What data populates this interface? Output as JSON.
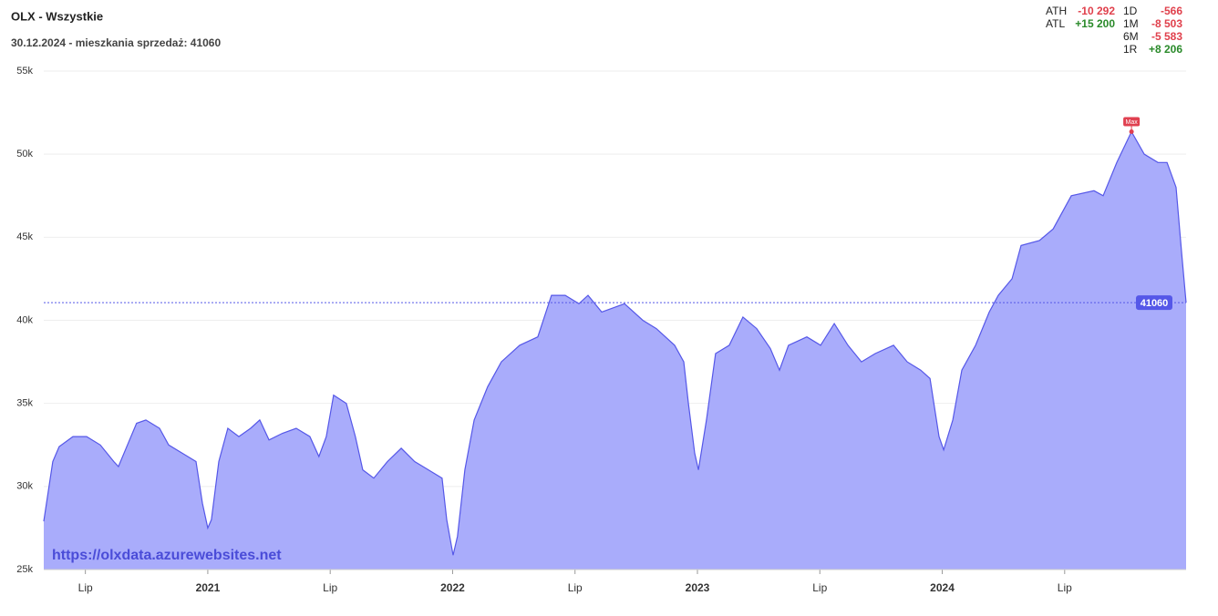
{
  "chart_data": {
    "type": "area",
    "title": "OLX - Wszystkie",
    "subtitle": "30.12.2024 - mieszkania sprzedaż: 41060",
    "watermark": "https://olxdata.azurewebsites.net",
    "x": [
      2020.33,
      2020.367,
      2020.393,
      2020.449,
      2020.505,
      2020.561,
      2020.616,
      2020.635,
      2020.672,
      2020.709,
      2020.747,
      2020.803,
      2020.84,
      2020.896,
      2020.952,
      2020.978,
      2021.0,
      2021.015,
      2021.045,
      2021.082,
      2021.127,
      2021.175,
      2021.212,
      2021.25,
      2021.305,
      2021.361,
      2021.417,
      2021.454,
      2021.484,
      2021.514,
      2021.566,
      2021.603,
      2021.633,
      2021.678,
      2021.734,
      2021.79,
      2021.845,
      2021.901,
      2021.957,
      2021.976,
      2022.002,
      2022.02,
      2022.05,
      2022.088,
      2022.143,
      2022.199,
      2022.274,
      2022.348,
      2022.404,
      2022.46,
      2022.516,
      2022.553,
      2022.609,
      2022.702,
      2022.777,
      2022.832,
      2022.907,
      2022.944,
      2022.963,
      2022.989,
      2023.004,
      2023.037,
      2023.074,
      2023.13,
      2023.186,
      2023.242,
      2023.298,
      2023.335,
      2023.372,
      2023.447,
      2023.503,
      2023.559,
      2023.615,
      2023.67,
      2023.726,
      2023.801,
      2023.857,
      2023.912,
      2023.95,
      2023.987,
      2024.006,
      2024.043,
      2024.08,
      2024.136,
      2024.192,
      2024.229,
      2024.285,
      2024.322,
      2024.397,
      2024.453,
      2024.527,
      2024.62,
      2024.657,
      2024.713,
      2024.773,
      2024.825,
      2024.881,
      2024.918,
      2024.955,
      2024.978,
      2024.996
    ],
    "series": [
      {
        "color": "#5557e8",
        "fill": "#a9acfb",
        "values": [
          27900,
          31500,
          32400,
          33000,
          33000,
          32500,
          31500,
          31200,
          32500,
          33800,
          34000,
          33500,
          32500,
          32000,
          31500,
          29000,
          27500,
          28000,
          31500,
          33500,
          33000,
          33500,
          34000,
          32800,
          33200,
          33500,
          33000,
          31800,
          33000,
          35500,
          35000,
          33000,
          31000,
          30500,
          31500,
          32300,
          31500,
          31000,
          30500,
          28000,
          25860,
          27000,
          31000,
          34000,
          36000,
          37500,
          38500,
          39000,
          41500,
          41500,
          41000,
          41500,
          40500,
          41000,
          40000,
          39500,
          38500,
          37500,
          35000,
          32000,
          31000,
          34000,
          38000,
          38500,
          40200,
          39500,
          38300,
          37000,
          38500,
          39000,
          38500,
          39800,
          38500,
          37500,
          38000,
          38500,
          37500,
          37000,
          36500,
          33000,
          32200,
          34000,
          37000,
          38500,
          40500,
          41500,
          42500,
          44500,
          44800,
          45500,
          47500,
          47800,
          47500,
          49500,
          51352,
          50000,
          49500,
          49500,
          48000,
          44000,
          41060
        ]
      }
    ],
    "xlim": [
      2020.33,
      2024.996
    ],
    "xticks": [
      {
        "value": 2020.5,
        "label": "Lip"
      },
      2021,
      {
        "value": 2021.5,
        "label": "Lip"
      },
      2022,
      {
        "value": 2022.5,
        "label": "Lip"
      },
      2023,
      {
        "value": 2023.5,
        "label": "Lip"
      },
      2024,
      {
        "value": 2024.5,
        "label": "Lip"
      }
    ],
    "ylim": [
      25000,
      55000
    ],
    "yticks": [
      {
        "value": 25000,
        "label": "25k"
      },
      {
        "value": 30000,
        "label": "30k"
      },
      {
        "value": 35000,
        "label": "35k"
      },
      {
        "value": 40000,
        "label": "40k"
      },
      {
        "value": 45000,
        "label": "45k"
      },
      {
        "value": 50000,
        "label": "50k"
      },
      {
        "value": 55000,
        "label": "55k"
      }
    ],
    "grid": true,
    "last_value": 41060,
    "annotations": [
      {
        "text": "Max",
        "x": 2024.773,
        "y": 51352
      }
    ],
    "stats": {
      "left": [
        {
          "label": "ATH",
          "value": "-10 292"
        },
        {
          "label": "ATL",
          "value": "+15 200"
        }
      ],
      "right": [
        {
          "label": "1D",
          "value": "-566"
        },
        {
          "label": "1M",
          "value": "-8 503"
        },
        {
          "label": "6M",
          "value": "-5 583"
        },
        {
          "label": "1R",
          "value": "+8 206"
        }
      ]
    }
  }
}
